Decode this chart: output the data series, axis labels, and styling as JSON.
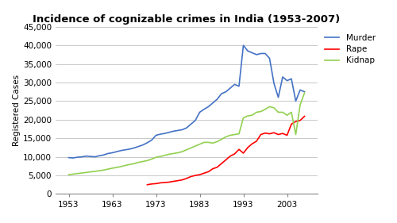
{
  "title": "Incidence of cognizable crimes in India (1953-2007)",
  "ylabel": "Registered Cases",
  "ylim": [
    0,
    45000
  ],
  "yticks": [
    0,
    5000,
    10000,
    15000,
    20000,
    25000,
    30000,
    35000,
    40000,
    45000
  ],
  "xticks": [
    1953,
    1963,
    1973,
    1983,
    1993,
    2003
  ],
  "xlim": [
    1950,
    2010
  ],
  "murder_color": "#4472C4",
  "rape_color": "#FF0000",
  "kidnap_color": "#92D050",
  "background": "#FFFFFF",
  "murder": {
    "years": [
      1953,
      1954,
      1955,
      1956,
      1957,
      1958,
      1959,
      1960,
      1961,
      1962,
      1963,
      1964,
      1965,
      1966,
      1967,
      1968,
      1969,
      1970,
      1971,
      1972,
      1973,
      1974,
      1975,
      1976,
      1977,
      1978,
      1979,
      1980,
      1981,
      1982,
      1983,
      1984,
      1985,
      1986,
      1987,
      1988,
      1989,
      1990,
      1991,
      1992,
      1993,
      1994,
      1995,
      1996,
      1997,
      1998,
      1999,
      2000,
      2001,
      2002,
      2003,
      2004,
      2005,
      2006,
      2007
    ],
    "values": [
      9800,
      9700,
      9900,
      10000,
      10200,
      10100,
      10000,
      10300,
      10500,
      10900,
      11100,
      11400,
      11700,
      11900,
      12100,
      12400,
      12800,
      13200,
      13800,
      14500,
      15800,
      16100,
      16300,
      16600,
      16900,
      17100,
      17300,
      17800,
      18800,
      19800,
      22000,
      22800,
      23500,
      24500,
      25500,
      27000,
      27500,
      28500,
      29500,
      29000,
      40000,
      38500,
      38000,
      37500,
      37800,
      37800,
      36500,
      29800,
      26000,
      31500,
      30500,
      31000,
      25000,
      28000,
      27500
    ]
  },
  "rape": {
    "years": [
      1971,
      1972,
      1973,
      1974,
      1975,
      1976,
      1977,
      1978,
      1979,
      1980,
      1981,
      1982,
      1983,
      1984,
      1985,
      1986,
      1987,
      1988,
      1989,
      1990,
      1991,
      1992,
      1993,
      1994,
      1995,
      1996,
      1997,
      1998,
      1999,
      2000,
      2001,
      2002,
      2003,
      2004,
      2005,
      2006,
      2007
    ],
    "values": [
      2500,
      2700,
      2800,
      3000,
      3100,
      3200,
      3400,
      3600,
      3800,
      4200,
      4700,
      5000,
      5200,
      5600,
      6000,
      6800,
      7200,
      8200,
      9200,
      10200,
      10800,
      12000,
      11000,
      12500,
      13500,
      14200,
      16000,
      16400,
      16200,
      16500,
      16000,
      16300,
      15800,
      18800,
      19500,
      19800,
      20900
    ]
  },
  "kidnap": {
    "years": [
      1953,
      1954,
      1955,
      1956,
      1957,
      1958,
      1959,
      1960,
      1961,
      1962,
      1963,
      1964,
      1965,
      1966,
      1967,
      1968,
      1969,
      1970,
      1971,
      1972,
      1973,
      1974,
      1975,
      1976,
      1977,
      1978,
      1979,
      1980,
      1981,
      1982,
      1983,
      1984,
      1985,
      1986,
      1987,
      1988,
      1989,
      1990,
      1991,
      1992,
      1993,
      1994,
      1995,
      1996,
      1997,
      1998,
      1999,
      2000,
      2001,
      2002,
      2003,
      2004,
      2005,
      2006,
      2007
    ],
    "values": [
      5200,
      5350,
      5500,
      5650,
      5800,
      5950,
      6100,
      6250,
      6450,
      6700,
      6950,
      7150,
      7400,
      7700,
      7950,
      8200,
      8500,
      8750,
      9000,
      9400,
      9900,
      10100,
      10400,
      10700,
      10900,
      11100,
      11400,
      11900,
      12400,
      12900,
      13400,
      13900,
      13900,
      13700,
      14100,
      14700,
      15400,
      15800,
      16000,
      16200,
      20500,
      21000,
      21200,
      22000,
      22200,
      22800,
      23500,
      23200,
      22000,
      22000,
      21200,
      22000,
      16000,
      24000,
      27200
    ]
  }
}
